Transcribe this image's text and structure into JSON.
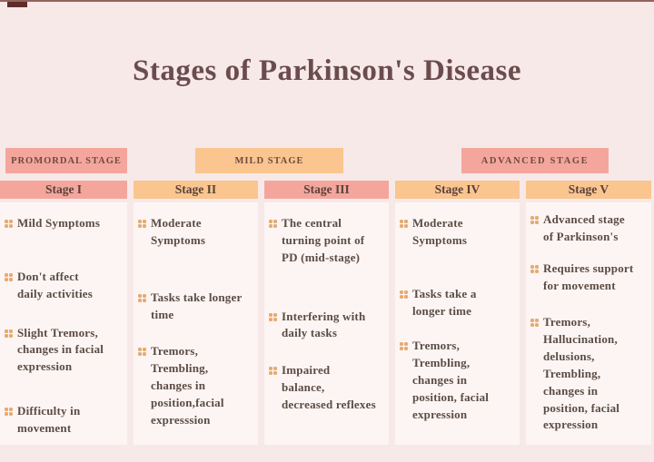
{
  "page": {
    "title": "Stages of Parkinson's Disease"
  },
  "phase_bands": [
    {
      "label": "PROMORDAL STAGE"
    },
    {
      "label": "MILD STAGE"
    },
    {
      "label": "ADVANCED STAGE"
    }
  ],
  "columns": [
    {
      "header": "Stage I",
      "items": [
        "Mild Symptoms",
        "Don't affect\ndaily activities",
        "Slight Tremors,\nchanges in facial\nexpression",
        "Difficulty in\nmovement"
      ]
    },
    {
      "header": "Stage II",
      "items": [
        "Moderate\nSymptoms",
        "Tasks take longer\ntime",
        "Tremors,\nTrembling,\nchanges in\nposition,facial\nexpresssion"
      ]
    },
    {
      "header": "Stage III",
      "items": [
        "The central\nturning point of\nPD (mid-stage)",
        "Interfering with\ndaily tasks",
        "Impaired\nbalance,\ndecreased reflexes"
      ]
    },
    {
      "header": "Stage IV",
      "items": [
        "Moderate\nSymptoms",
        "Tasks take a\nlonger time",
        "Tremors,\nTrembling,\nchanges in\nposition, facial\nexpression"
      ]
    },
    {
      "header": "Stage V",
      "items": [
        "Advanced stage\nof Parkinson's",
        "Requires support\nfor movement",
        "Tremors,\nHallucination,\ndelusions,\nTrembling,\nchanges in\nposition, facial\nexpression"
      ]
    }
  ],
  "colors": {
    "background": "#f7e9e8",
    "card": "#fcf5f3",
    "salmon": "#f4a69d",
    "orange": "#fac58e",
    "title_text": "#6b4c4c",
    "body_text": "#5c4b44",
    "bullet": "#e7aa70"
  }
}
